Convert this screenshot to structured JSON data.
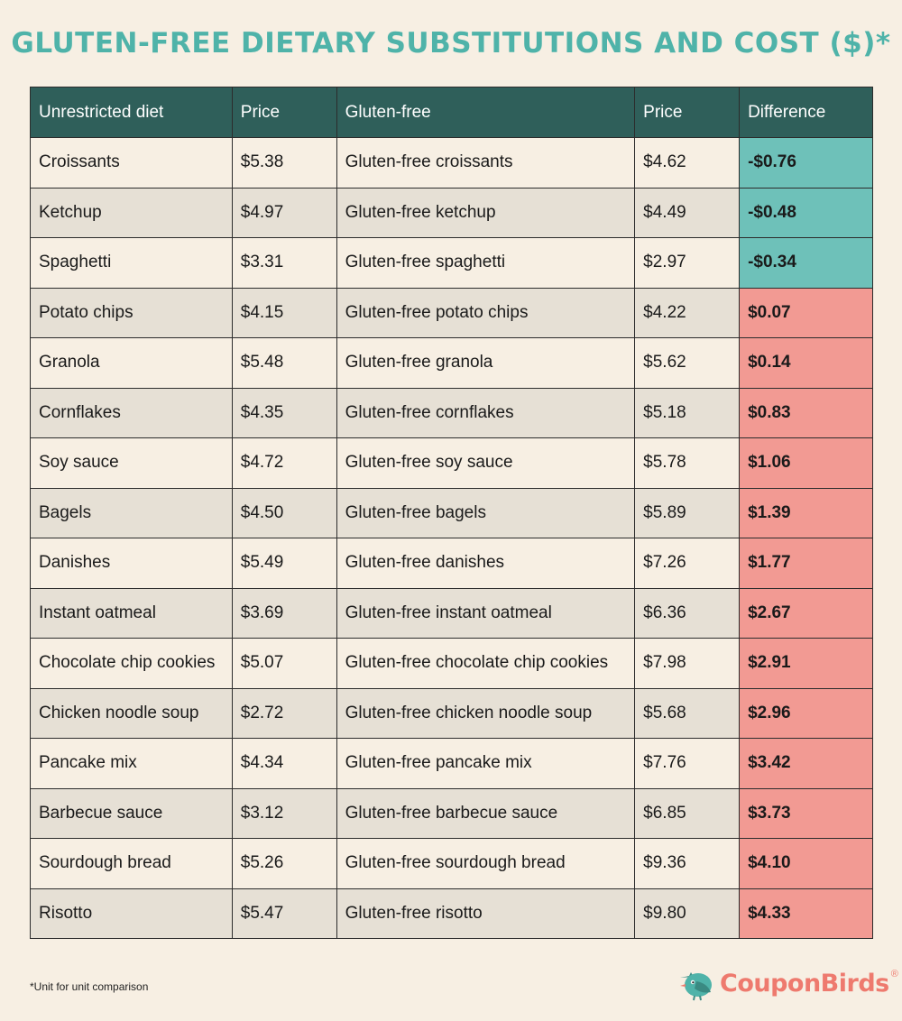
{
  "title": "GLUTEN-FREE DIETARY SUBSTITUTIONS AND COST ($)*",
  "table": {
    "headers": [
      "Unrestricted diet",
      "Price",
      "Gluten-free",
      "Price",
      "Difference"
    ],
    "rows": [
      {
        "item": "Croissants",
        "price": "$5.38",
        "gf_item": "Gluten-free croissants",
        "gf_price": "$4.62",
        "difference": "-$0.76",
        "sign": "neg"
      },
      {
        "item": "Ketchup",
        "price": "$4.97",
        "gf_item": "Gluten-free ketchup",
        "gf_price": "$4.49",
        "difference": "-$0.48",
        "sign": "neg"
      },
      {
        "item": "Spaghetti",
        "price": "$3.31",
        "gf_item": "Gluten-free spaghetti",
        "gf_price": "$2.97",
        "difference": "-$0.34",
        "sign": "neg"
      },
      {
        "item": "Potato chips",
        "price": "$4.15",
        "gf_item": "Gluten-free potato chips",
        "gf_price": "$4.22",
        "difference": "$0.07",
        "sign": "pos"
      },
      {
        "item": "Granola",
        "price": "$5.48",
        "gf_item": "Gluten-free granola",
        "gf_price": "$5.62",
        "difference": "$0.14",
        "sign": "pos"
      },
      {
        "item": "Cornflakes",
        "price": "$4.35",
        "gf_item": "Gluten-free cornflakes",
        "gf_price": "$5.18",
        "difference": "$0.83",
        "sign": "pos"
      },
      {
        "item": "Soy sauce",
        "price": "$4.72",
        "gf_item": "Gluten-free soy sauce",
        "gf_price": "$5.78",
        "difference": "$1.06",
        "sign": "pos"
      },
      {
        "item": "Bagels",
        "price": "$4.50",
        "gf_item": "Gluten-free bagels",
        "gf_price": "$5.89",
        "difference": "$1.39",
        "sign": "pos"
      },
      {
        "item": "Danishes",
        "price": "$5.49",
        "gf_item": "Gluten-free danishes",
        "gf_price": "$7.26",
        "difference": "$1.77",
        "sign": "pos"
      },
      {
        "item": "Instant oatmeal",
        "price": "$3.69",
        "gf_item": "Gluten-free instant oatmeal",
        "gf_price": "$6.36",
        "difference": "$2.67",
        "sign": "pos"
      },
      {
        "item": "Chocolate chip cookies",
        "price": "$5.07",
        "gf_item": "Gluten-free chocolate chip cookies",
        "gf_price": "$7.98",
        "difference": "$2.91",
        "sign": "pos"
      },
      {
        "item": "Chicken noodle soup",
        "price": "$2.72",
        "gf_item": "Gluten-free chicken noodle soup",
        "gf_price": "$5.68",
        "difference": "$2.96",
        "sign": "pos"
      },
      {
        "item": "Pancake mix",
        "price": "$4.34",
        "gf_item": "Gluten-free pancake mix",
        "gf_price": "$7.76",
        "difference": "$3.42",
        "sign": "pos"
      },
      {
        "item": "Barbecue sauce",
        "price": "$3.12",
        "gf_item": "Gluten-free barbecue sauce",
        "gf_price": "$6.85",
        "difference": "$3.73",
        "sign": "pos"
      },
      {
        "item": "Sourdough bread",
        "price": "$5.26",
        "gf_item": "Gluten-free sourdough bread",
        "gf_price": "$9.36",
        "difference": "$4.10",
        "sign": "pos"
      },
      {
        "item": "Risotto",
        "price": "$5.47",
        "gf_item": "Gluten-free risotto",
        "gf_price": "$9.80",
        "difference": "$4.33",
        "sign": "pos"
      }
    ]
  },
  "footnote": "*Unit for unit comparison",
  "brand": {
    "name": "CouponBirds",
    "mark": "®",
    "icon": "bird-logo-icon"
  },
  "colors": {
    "title": "#4fb3a9",
    "header_bg": "#2f5f5a",
    "negative_bg": "#6ec1b9",
    "positive_bg": "#f29a93",
    "row_light": "#f7efe3",
    "row_dark": "#e6e0d5",
    "brand": "#ee7a6e"
  }
}
